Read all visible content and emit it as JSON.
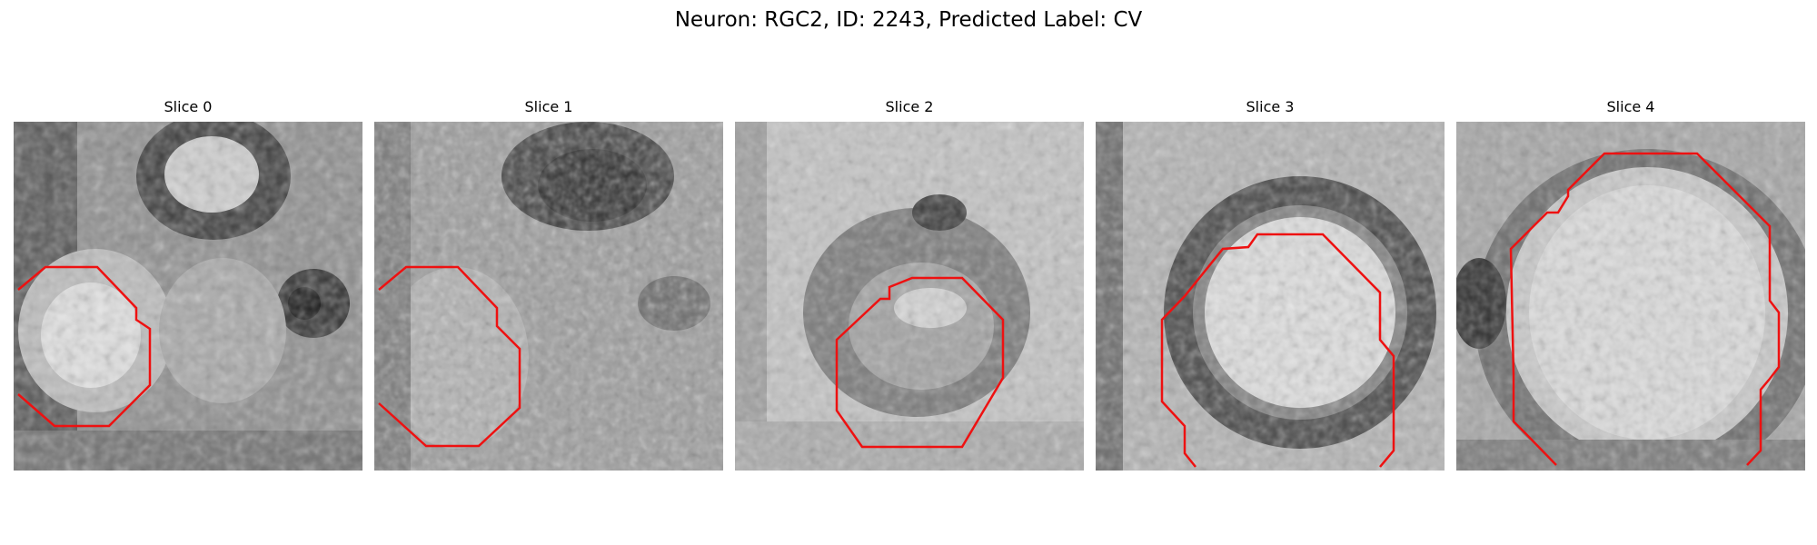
{
  "figure": {
    "title": "Neuron: RGC2, ID: 2243, Predicted Label: CV"
  },
  "panels": [
    {
      "title": "Slice 0"
    },
    {
      "title": "Slice 1"
    },
    {
      "title": "Slice 2"
    },
    {
      "title": "Slice 3"
    },
    {
      "title": "Slice 4"
    }
  ],
  "colors": {
    "contour": "#ee1111",
    "background": "#ffffff"
  }
}
